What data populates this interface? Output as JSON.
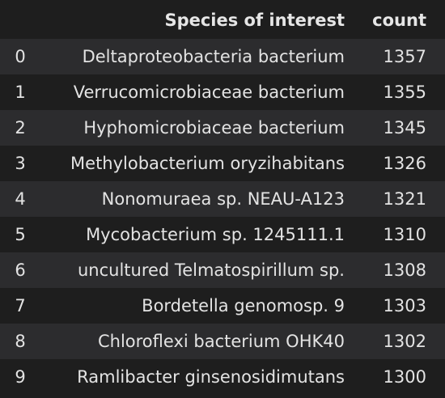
{
  "table": {
    "columns": {
      "species": "Species of interest",
      "count": "count"
    },
    "rows": [
      {
        "index": "0",
        "species": "Deltaproteobacteria bacterium",
        "count": "1357"
      },
      {
        "index": "1",
        "species": "Verrucomicrobiaceae bacterium",
        "count": "1355"
      },
      {
        "index": "2",
        "species": "Hyphomicrobiaceae bacterium",
        "count": "1345"
      },
      {
        "index": "3",
        "species": "Methylobacterium oryzihabitans",
        "count": "1326"
      },
      {
        "index": "4",
        "species": "Nonomuraea sp. NEAU-A123",
        "count": "1321"
      },
      {
        "index": "5",
        "species": "Mycobacterium sp. 1245111.1",
        "count": "1310"
      },
      {
        "index": "6",
        "species": "uncultured Telmatospirillum sp.",
        "count": "1308"
      },
      {
        "index": "7",
        "species": "Bordetella genomosp. 9",
        "count": "1303"
      },
      {
        "index": "8",
        "species": "Chloroflexi bacterium OHK40",
        "count": "1302"
      },
      {
        "index": "9",
        "species": "Ramlibacter ginsenosidimutans",
        "count": "1300"
      }
    ]
  }
}
